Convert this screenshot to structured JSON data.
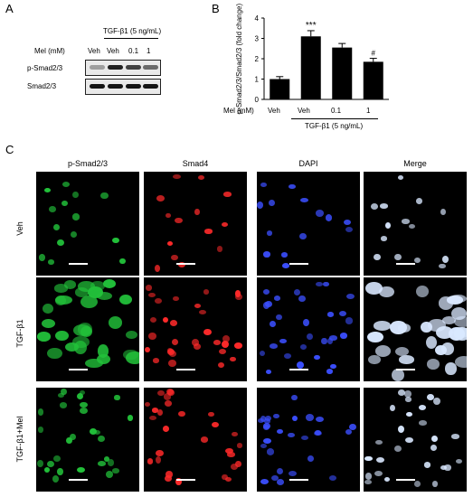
{
  "panel_a": {
    "letter": "A",
    "treatment_label": "TGF-β1 (5 ng/mL)",
    "mel_label": "Mel (mM)",
    "lanes": [
      "Veh",
      "Veh",
      "0.1",
      "1"
    ],
    "blots": [
      "p-Smad2/3",
      "Smad2/3"
    ],
    "band_intensity": {
      "p-Smad2/3": [
        0.35,
        0.95,
        0.8,
        0.6
      ],
      "Smad2/3": [
        0.9,
        0.9,
        0.9,
        0.9
      ]
    }
  },
  "panel_b": {
    "letter": "B",
    "significance": [
      "",
      "***",
      "",
      "#"
    ],
    "xaxis_group_label": "TGF-β1 (5 ng/mL)"
  },
  "chart_data": {
    "type": "bar",
    "categories": [
      "Veh",
      "Veh",
      "0.1",
      "1"
    ],
    "xlabel": "Mel (mM)",
    "ylabel": "p-Smad2/3/Smad2/3 (fold change)",
    "ylim": [
      0,
      4
    ],
    "yticks": [
      0,
      1,
      2,
      3,
      4
    ],
    "values": [
      1.0,
      3.1,
      2.55,
      1.85
    ],
    "errors": [
      0.12,
      0.28,
      0.2,
      0.17
    ],
    "bar_color": "#000000"
  },
  "panel_c": {
    "letter": "C",
    "columns": [
      "p-Smad2/3",
      "Smad4",
      "DAPI",
      "Merge"
    ],
    "rows": [
      "Veh",
      "TGF-β1",
      "TGF-β1+Mel"
    ],
    "channel_colors": {
      "p-Smad2/3": "#22c13a",
      "Smad4": "#ff2a2a",
      "DAPI": "#3b4fff",
      "Merge": "#d9e8ff"
    }
  }
}
